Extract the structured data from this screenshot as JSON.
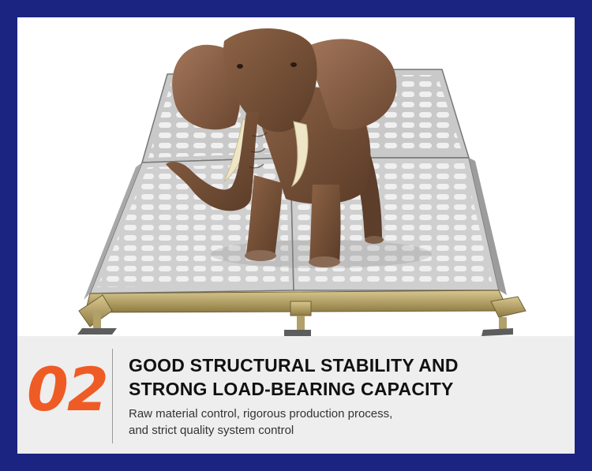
{
  "feature": {
    "number": "02",
    "title_lines": [
      "GOOD STRUCTURAL STABILITY AND",
      "STRONG LOAD-BEARING CAPACITY"
    ],
    "description_lines": [
      "Raw material control, rigorous production process,",
      "and strict quality system control"
    ]
  },
  "colors": {
    "frame": "#1b2480",
    "accent": "#ef5b25",
    "info_background": "#eeeeee"
  }
}
